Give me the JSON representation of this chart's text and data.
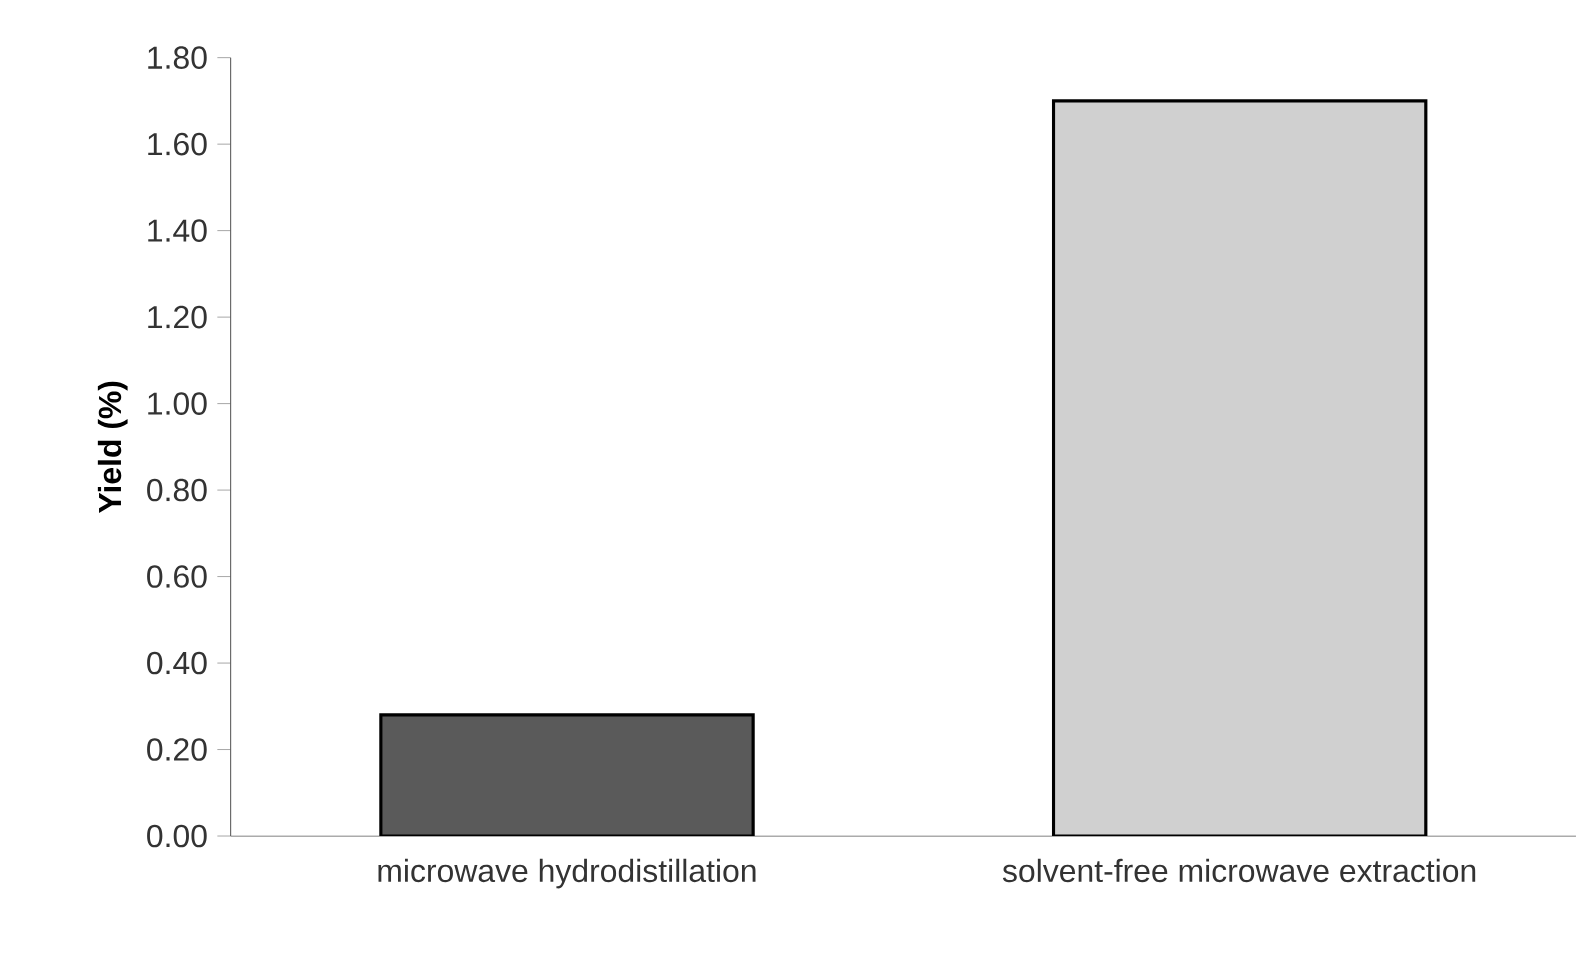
{
  "chart_data": {
    "type": "bar",
    "ylabel": "Yield (%)",
    "categories": [
      "microwave hydrodistillation",
      "solvent-free microwave extraction"
    ],
    "values": [
      0.28,
      1.7
    ],
    "colors": [
      "#5a5a5a",
      "#d0d0d0"
    ],
    "ylim": [
      0,
      1.8
    ],
    "yticks": [
      {
        "value": 0,
        "label": "0.00"
      },
      {
        "value": 0.2,
        "label": "0.20"
      },
      {
        "value": 0.4,
        "label": "0.40"
      },
      {
        "value": 0.6,
        "label": "0.60"
      },
      {
        "value": 0.8,
        "label": "0.80"
      },
      {
        "value": 1.0,
        "label": "1.00"
      },
      {
        "value": 1.2,
        "label": "1.20"
      },
      {
        "value": 1.4,
        "label": "1.40"
      },
      {
        "value": 1.6,
        "label": "1.60"
      },
      {
        "value": 1.8,
        "label": "1.80"
      }
    ],
    "grid": false
  }
}
